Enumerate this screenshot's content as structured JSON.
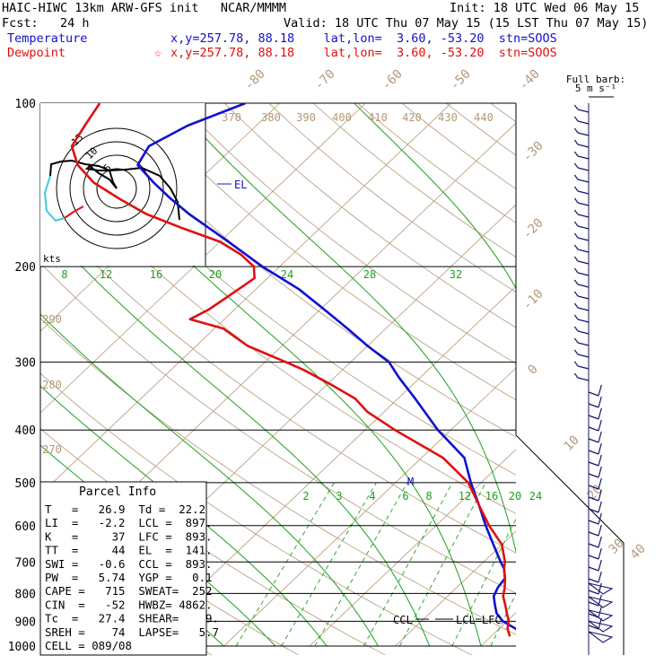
{
  "header": {
    "model": "HAIC-HIWC 13km ARW-GFS init   NCAR/MMMM",
    "init": "Init: 18 UTC Wed 06 May 15",
    "fcst": "Fcst:   24 h",
    "valid": "Valid: 18 UTC Thu 07 May 15 (15 LST Thu 07 May 15)",
    "temperature_label": "Temperature",
    "temperature_loc": "x,y=257.78, 88.18    lat,lon=  3.60, -53.20  stn=SOOS",
    "dewpoint_label": "Dewpoint",
    "dewpoint_loc": "x,y=257.78, 88.18    lat,lon=  3.60, -53.20  stn=SOOS",
    "dewpoint_marker": "☆"
  },
  "colors": {
    "temperature": "#1010d0",
    "dewpoint": "#e01010",
    "isotherm": "#b49878",
    "mixing_ratio": "#1ea01e",
    "barbs": "#14146e",
    "hodo_ring": "#000000",
    "hodo_low": "#40c8e0",
    "hodo_mid": "#000000",
    "hodo_high": "#e01010"
  },
  "barbs_legend": {
    "title": "Full barb:",
    "value": "5 m s⁻¹"
  },
  "hodograph": {
    "ring_labels": [
      "15",
      "10",
      "5"
    ],
    "units": "kts"
  },
  "parcel_info": {
    "title": "Parcel Info",
    "rows": [
      "T   =   26.9  Td =  22.2",
      "LI  =   -2.2  LCL =  897.",
      "K   =     37  LFC =  893.",
      "TT  =     44  EL  =  141.",
      "SWI =   -0.6  CCL =  893.",
      "PW  =   5.74  YGP =   0.1",
      "CAPE =   715  SWEAT=  252",
      "CIN  =   -52  HWBZ= 4862.",
      "Tc  =   27.4  SHEAR=    9.",
      "SREH =    74  LAPSE=   5.7",
      "CELL = 089/08"
    ]
  },
  "level_labels": {
    "el": "EL",
    "m": "M",
    "ccl": "CCL",
    "lcl_lfc": "LCL=LFC"
  },
  "chart_data": {
    "type": "line",
    "chart_kind": "skew-T log-p diagram",
    "y_axis": "pressure (hPa), log scale, inverted",
    "ylim": [
      1000,
      100
    ],
    "pressure_ticks": [
      100,
      200,
      300,
      400,
      500,
      600,
      700,
      800,
      900,
      1000
    ],
    "isotherm_labels": [
      "-80",
      "-70",
      "-60",
      "-50",
      "-40",
      "-30",
      "-20",
      "-10",
      "0",
      "10",
      "20",
      "30",
      "40"
    ],
    "theta_labels": [
      "370",
      "380",
      "390",
      "400",
      "410",
      "420",
      "430",
      "440",
      "290",
      "280",
      "270"
    ],
    "mixing_ratio_labels_upper": [
      "8",
      "12",
      "16",
      "20",
      "24",
      "28",
      "32"
    ],
    "mixing_ratio_labels_lower": [
      "2",
      "3",
      "4",
      "6",
      "8",
      "12",
      "16",
      "20",
      "24"
    ],
    "series": [
      {
        "name": "Temperature",
        "p": [
          985,
          960,
          930,
          900,
          870,
          840,
          810,
          780,
          750,
          720,
          700,
          650,
          600,
          550,
          500,
          450,
          400,
          350,
          320,
          300,
          280,
          260,
          240,
          220,
          200,
          180,
          160,
          150,
          140,
          130,
          120,
          110,
          100
        ],
        "t": [
          26.9,
          24.0,
          22.0,
          19.5,
          17.8,
          16.6,
          15.4,
          14.8,
          14.5,
          13.2,
          12.0,
          9.0,
          5.8,
          2.5,
          -1.2,
          -5.0,
          -11.5,
          -18.0,
          -22.5,
          -25.5,
          -30.0,
          -34.5,
          -39.5,
          -45.0,
          -52.0,
          -59.0,
          -67.0,
          -71.0,
          -75.0,
          -79.0,
          -80.0,
          -78.0,
          -74.0
        ]
      },
      {
        "name": "Dewpoint",
        "p": [
          960,
          930,
          900,
          870,
          840,
          810,
          780,
          750,
          720,
          700,
          650,
          600,
          550,
          500,
          450,
          400,
          370,
          350,
          330,
          310,
          300,
          280,
          260,
          250,
          240,
          230,
          220,
          210,
          200,
          190,
          180,
          170,
          160,
          150,
          140,
          130,
          120,
          110,
          100
        ],
        "td": [
          22.2,
          21.0,
          20.2,
          19.0,
          17.8,
          16.5,
          15.6,
          14.5,
          13.2,
          12.5,
          10.0,
          6.2,
          2.5,
          -1.5,
          -7.5,
          -16.5,
          -22.0,
          -25.0,
          -29.5,
          -34.5,
          -37.5,
          -44.0,
          -49.0,
          -54.0,
          -53.0,
          -52.5,
          -52.0,
          -51.5,
          -53.0,
          -56.0,
          -60.0,
          -66.0,
          -72.0,
          -77.0,
          -82.0,
          -86.0,
          -89.0,
          -90.0,
          -91.0
        ]
      }
    ]
  }
}
